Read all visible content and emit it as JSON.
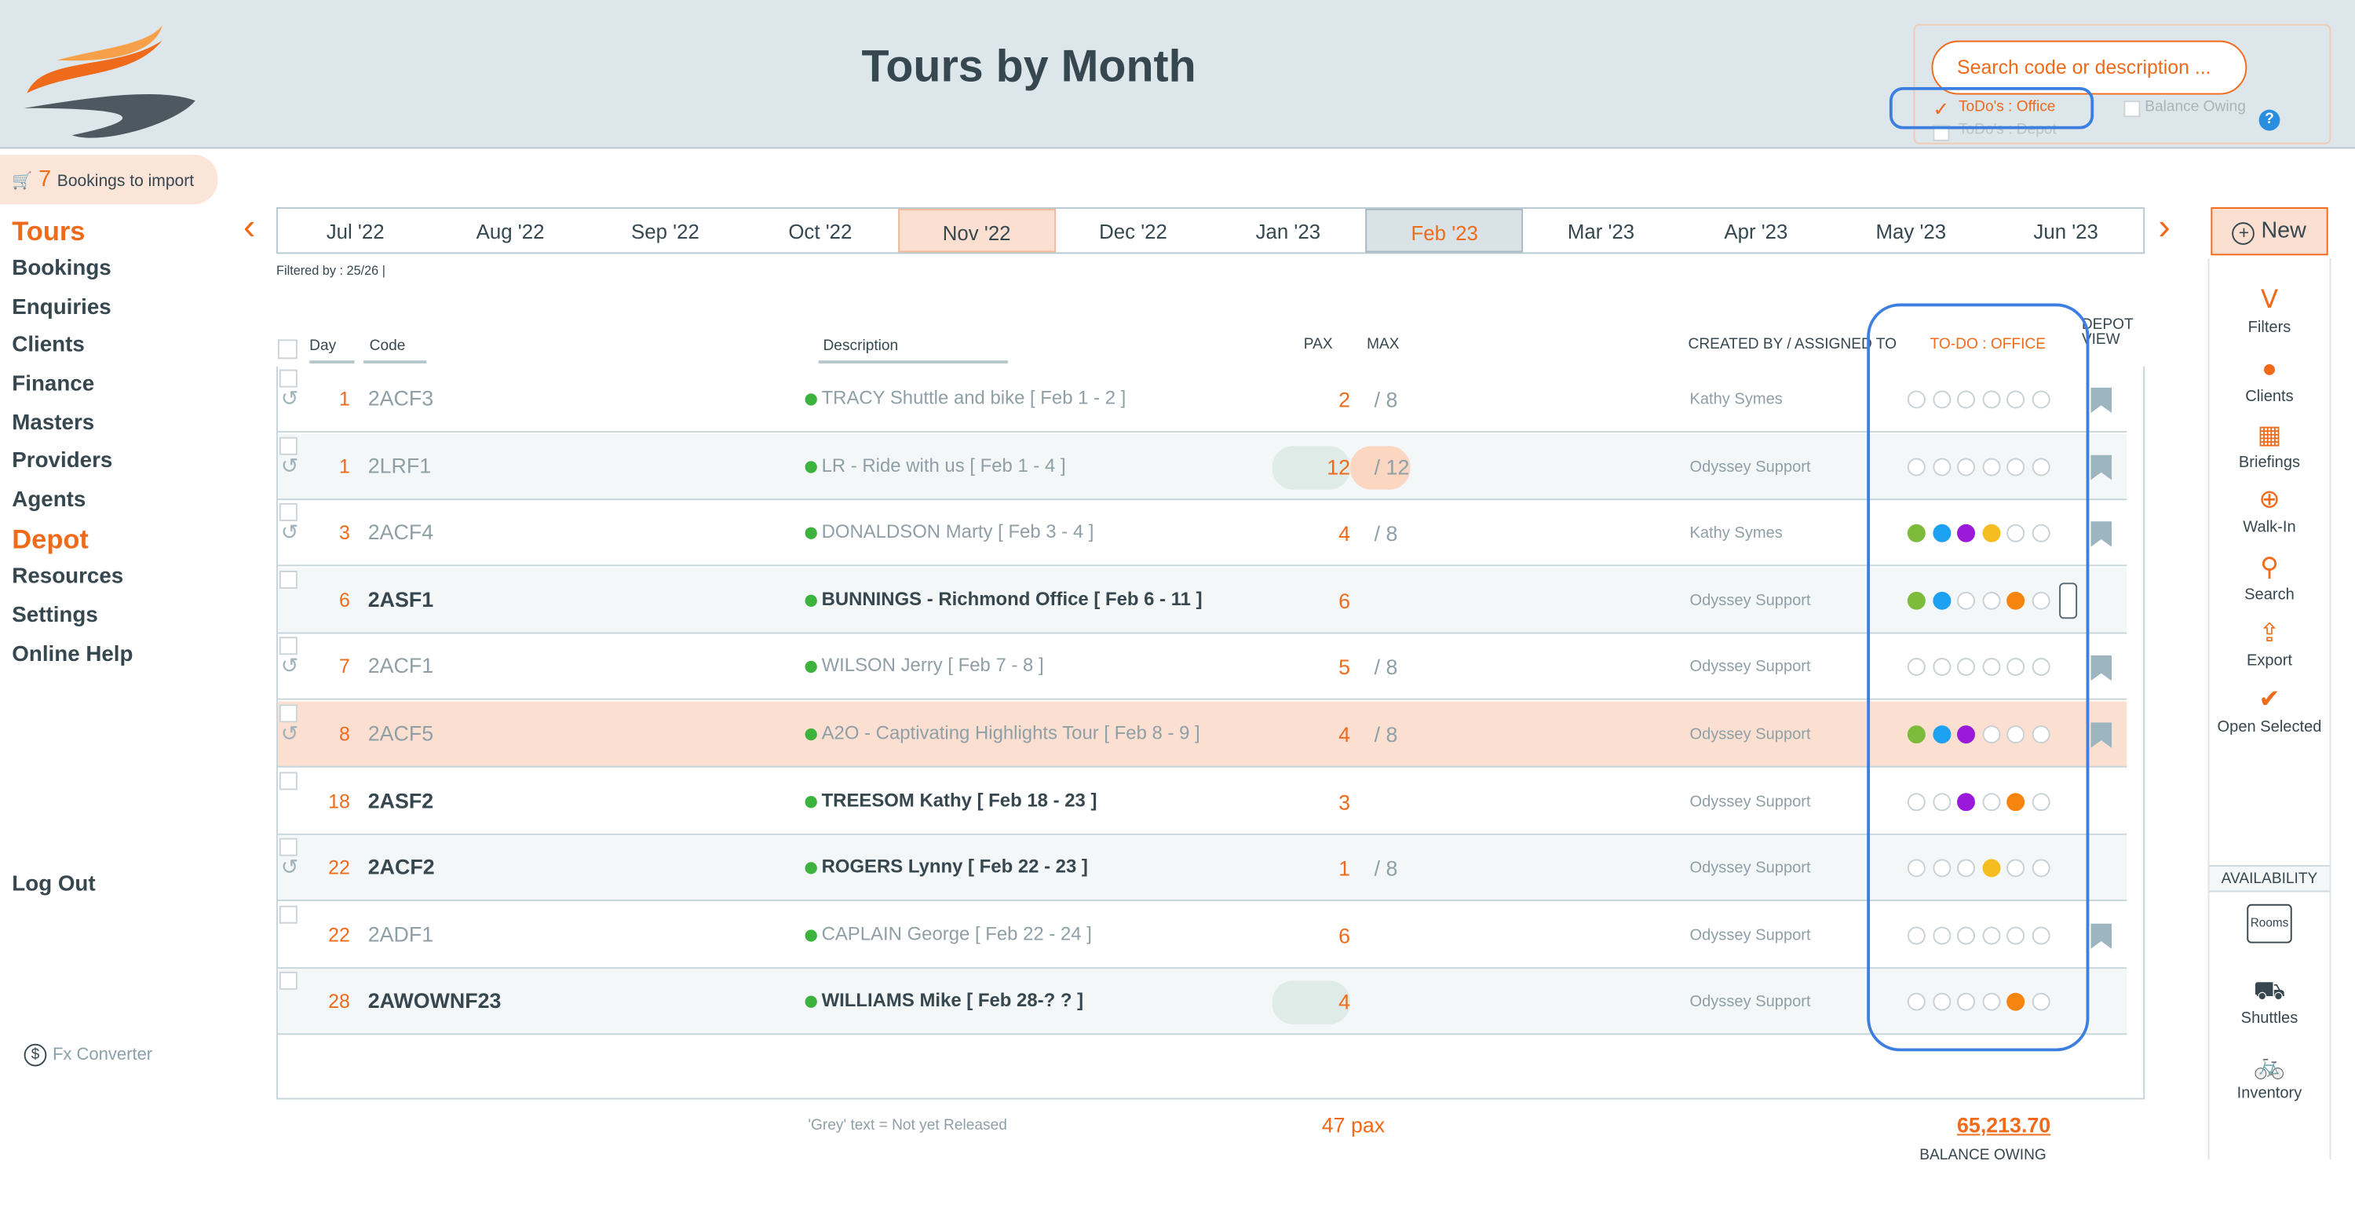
{
  "header": {
    "title": "Tours by Month",
    "search_placeholder": "Search code or description ...",
    "chk_office": "ToDo's : Office",
    "chk_depot": "ToDo's : Depot",
    "chk_balance": "Balance Owing",
    "help": "?"
  },
  "import": {
    "count": "7",
    "label": "Bookings to import"
  },
  "nav": [
    "Tours",
    "Bookings",
    "Enquiries",
    "Clients",
    "Finance",
    "Masters",
    "Providers",
    "Agents",
    "Depot",
    "Resources",
    "Settings",
    "Online Help"
  ],
  "logout": "Log Out",
  "fx": "Fx Converter",
  "months": [
    "Jul '22",
    "Aug '22",
    "Sep '22",
    "Oct '22",
    "Nov '22",
    "Dec '22",
    "Jan '23",
    "Feb '23",
    "Mar '23",
    "Apr '23",
    "May '23",
    "Jun '23"
  ],
  "new_label": "New",
  "filtered": "Filtered by : 25/26 |",
  "columns": {
    "day": "Day",
    "code": "Code",
    "description": "Description",
    "pax": "PAX",
    "max": "MAX",
    "created": "CREATED BY / ASSIGNED TO",
    "todo": "TO-DO : OFFICE",
    "depot": "DEPOT VIEW"
  },
  "rows": [
    {
      "day": "1",
      "code": "2ACF3",
      "desc": "TRACY Shuttle and bike   [ Feb 1 - 2 ]",
      "pax": "2",
      "max": "/ 8",
      "owner": "Kathy Symes",
      "bold": false,
      "hist": true,
      "bm": true,
      "dots": [
        "",
        "",
        "",
        "",
        "",
        ""
      ]
    },
    {
      "day": "1",
      "code": "2LRF1",
      "desc": "LR - Ride with us  [ Feb 1 - 4 ]",
      "pax": "12",
      "max": "/ 12",
      "owner": "Odyssey Support",
      "bold": false,
      "hist": true,
      "bm": true,
      "dots": [
        "",
        "",
        "",
        "",
        "",
        ""
      ]
    },
    {
      "day": "3",
      "code": "2ACF4",
      "desc": "DONALDSON Marty  [ Feb 3 - 4 ]",
      "pax": "4",
      "max": "/ 8",
      "owner": "Kathy Symes",
      "bold": false,
      "hist": true,
      "bm": true,
      "dots": [
        "#7dbb3c",
        "#1da1f2",
        "#9b19d8",
        "#f5bd1f",
        "",
        ""
      ]
    },
    {
      "day": "6",
      "code": "2ASF1",
      "desc": "BUNNINGS - Richmond Office  [ Feb 6 - 11 ]",
      "pax": "6",
      "max": "",
      "owner": "Odyssey Support",
      "bold": true,
      "hist": false,
      "bm": false,
      "phone": true,
      "dots": [
        "#7dbb3c",
        "#1da1f2",
        "",
        "",
        "#f5850f",
        ""
      ]
    },
    {
      "day": "7",
      "code": "2ACF1",
      "desc": "WILSON Jerry  [ Feb 7 - 8 ]",
      "pax": "5",
      "max": "/ 8",
      "owner": "Odyssey Support",
      "bold": false,
      "hist": true,
      "bm": true,
      "dots": [
        "",
        "",
        "",
        "",
        "",
        ""
      ]
    },
    {
      "day": "8",
      "code": "2ACF5",
      "desc": "A2O - Captivating Highlights Tour  [ Feb 8 - 9 ]",
      "pax": "4",
      "max": "/ 8",
      "owner": "Odyssey Support",
      "bold": false,
      "hist": true,
      "bm": true,
      "dots": [
        "#7dbb3c",
        "#1da1f2",
        "#9b19d8",
        "",
        "",
        ""
      ]
    },
    {
      "day": "18",
      "code": "2ASF2",
      "desc": "TREESOM Kathy  [ Feb 18 - 23 ]",
      "pax": "3",
      "max": "",
      "owner": "Odyssey Support",
      "bold": true,
      "hist": false,
      "bm": false,
      "dots": [
        "",
        "",
        "#9b19d8",
        "",
        "#f5850f",
        ""
      ]
    },
    {
      "day": "22",
      "code": "2ACF2",
      "desc": "ROGERS Lynny  [ Feb 22 - 23 ]",
      "pax": "1",
      "max": "/ 8",
      "owner": "Odyssey Support",
      "bold": true,
      "hist": true,
      "bm": false,
      "dots": [
        "",
        "",
        "",
        "#f5bd1f",
        "",
        ""
      ]
    },
    {
      "day": "22",
      "code": "2ADF1",
      "desc": "CAPLAIN George  [ Feb 22 - 24 ]",
      "pax": "6",
      "max": "",
      "owner": "Odyssey Support",
      "bold": false,
      "hist": false,
      "bm": true,
      "dots": [
        "",
        "",
        "",
        "",
        "",
        ""
      ]
    },
    {
      "day": "28",
      "code": "2AWOWNF23",
      "desc": "WILLIAMS Mike  [ Feb 28-? ? ]",
      "pax": "4",
      "max": "",
      "owner": "Odyssey Support",
      "bold": true,
      "hist": false,
      "bm": false,
      "pill": true,
      "dots": [
        "",
        "",
        "",
        "",
        "#f5850f",
        ""
      ]
    }
  ],
  "footer": {
    "note": "'Grey' text = Not yet Released",
    "pax": "47 pax",
    "balance": "65,213.70",
    "balance_label": "BALANCE OWING"
  },
  "right": {
    "filters": "Filters",
    "clients": "Clients",
    "briefings": "Briefings",
    "walkin": "Walk-In",
    "search": "Search",
    "export": "Export",
    "open": "Open Selected",
    "availability": "AVAILABILITY",
    "rooms": "Rooms",
    "shuttles": "Shuttles",
    "inventory": "Inventory"
  },
  "colors": {
    "accent": "#ef6a1a",
    "highlight_blue": "#3d7fe0"
  }
}
